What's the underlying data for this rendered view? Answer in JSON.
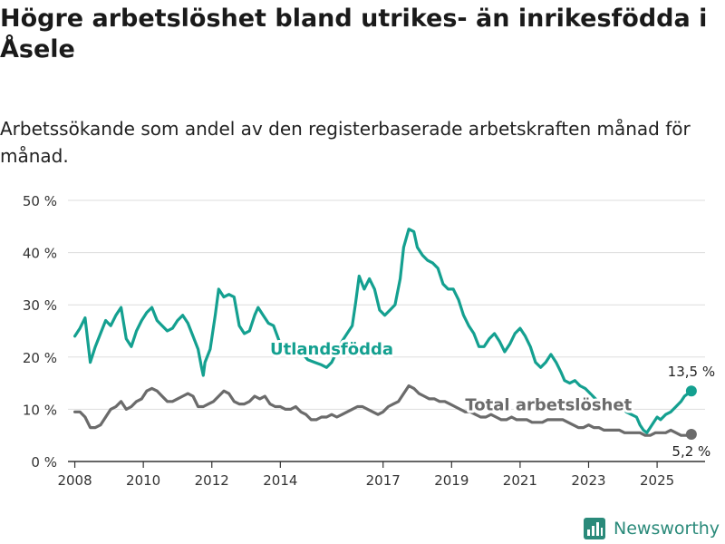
{
  "title": "Högre arbetslöshet bland utrikes- än inrikesfödda i Åsele",
  "subtitle": "Arbetssökande som andel av den registerbaserade arbetskraften månad för månad.",
  "brand": {
    "name": "Newsworthy",
    "icon": "newsworthy-logo-icon"
  },
  "colors": {
    "foreign_born": "#14a090",
    "total": "#6b6b6b",
    "grid": "#dddddd",
    "axis": "#333333"
  },
  "chart_data": {
    "type": "line",
    "title": "Högre arbetslöshet bland utrikes- än inrikesfödda i Åsele",
    "xlabel": "",
    "ylabel": "",
    "xlim": [
      2007.8,
      2026.4
    ],
    "ylim": [
      0,
      50
    ],
    "y_ticks": [
      0,
      10,
      20,
      30,
      40,
      50
    ],
    "y_tick_labels": [
      "0 %",
      "10 %",
      "20 %",
      "30 %",
      "40 %",
      "50 %"
    ],
    "x_ticks": [
      2008,
      2010,
      2012,
      2014,
      2017,
      2019,
      2021,
      2023,
      2025
    ],
    "x_tick_labels": [
      "2008",
      "2010",
      "2012",
      "2014",
      "2017",
      "2019",
      "2021",
      "2023",
      "2025"
    ],
    "grid": true,
    "series": [
      {
        "name": "Utlandsfödda",
        "end_label": "13,5 %",
        "points": [
          [
            2008.0,
            24
          ],
          [
            2008.15,
            25.5
          ],
          [
            2008.3,
            27.5
          ],
          [
            2008.45,
            19
          ],
          [
            2008.6,
            22
          ],
          [
            2008.75,
            24.5
          ],
          [
            2008.9,
            27
          ],
          [
            2009.05,
            26
          ],
          [
            2009.2,
            28
          ],
          [
            2009.35,
            29.5
          ],
          [
            2009.5,
            23.5
          ],
          [
            2009.65,
            22
          ],
          [
            2009.8,
            25
          ],
          [
            2009.95,
            27
          ],
          [
            2010.1,
            28.5
          ],
          [
            2010.25,
            29.5
          ],
          [
            2010.4,
            27
          ],
          [
            2010.55,
            26
          ],
          [
            2010.7,
            25
          ],
          [
            2010.85,
            25.5
          ],
          [
            2011.0,
            27
          ],
          [
            2011.15,
            28
          ],
          [
            2011.3,
            26.5
          ],
          [
            2011.45,
            24
          ],
          [
            2011.6,
            21.5
          ],
          [
            2011.7,
            18
          ],
          [
            2011.75,
            16.5
          ],
          [
            2011.8,
            19
          ],
          [
            2011.95,
            21.5
          ],
          [
            2012.1,
            28
          ],
          [
            2012.2,
            33
          ],
          [
            2012.35,
            31.5
          ],
          [
            2012.5,
            32
          ],
          [
            2012.65,
            31.5
          ],
          [
            2012.8,
            26
          ],
          [
            2012.95,
            24.5
          ],
          [
            2013.1,
            25
          ],
          [
            2013.25,
            28
          ],
          [
            2013.35,
            29.5
          ],
          [
            2013.5,
            28
          ],
          [
            2013.65,
            26.5
          ],
          [
            2013.8,
            26
          ],
          [
            2014.0,
            22.5
          ],
          [
            2014.2,
            22
          ],
          [
            2014.4,
            21.5
          ],
          [
            2014.6,
            21
          ],
          [
            2014.8,
            19.5
          ],
          [
            2015.0,
            19
          ],
          [
            2015.2,
            18.5
          ],
          [
            2015.35,
            18
          ],
          [
            2015.5,
            19
          ],
          [
            2015.65,
            21
          ],
          [
            2015.8,
            23
          ],
          [
            2015.95,
            24.5
          ],
          [
            2016.1,
            26
          ],
          [
            2016.2,
            30.5
          ],
          [
            2016.3,
            35.5
          ],
          [
            2016.45,
            33
          ],
          [
            2016.6,
            35
          ],
          [
            2016.75,
            33
          ],
          [
            2016.9,
            29
          ],
          [
            2017.05,
            28
          ],
          [
            2017.2,
            29
          ],
          [
            2017.35,
            30
          ],
          [
            2017.5,
            35
          ],
          [
            2017.6,
            41
          ],
          [
            2017.75,
            44.5
          ],
          [
            2017.9,
            44
          ],
          [
            2018.0,
            41
          ],
          [
            2018.15,
            39.5
          ],
          [
            2018.3,
            38.5
          ],
          [
            2018.45,
            38
          ],
          [
            2018.6,
            37
          ],
          [
            2018.75,
            34
          ],
          [
            2018.9,
            33
          ],
          [
            2019.05,
            33
          ],
          [
            2019.2,
            31
          ],
          [
            2019.35,
            28
          ],
          [
            2019.5,
            26
          ],
          [
            2019.65,
            24.5
          ],
          [
            2019.8,
            22
          ],
          [
            2019.95,
            22
          ],
          [
            2020.1,
            23.5
          ],
          [
            2020.25,
            24.5
          ],
          [
            2020.4,
            23
          ],
          [
            2020.55,
            21
          ],
          [
            2020.7,
            22.5
          ],
          [
            2020.85,
            24.5
          ],
          [
            2021.0,
            25.5
          ],
          [
            2021.15,
            24
          ],
          [
            2021.3,
            22
          ],
          [
            2021.45,
            19
          ],
          [
            2021.6,
            18
          ],
          [
            2021.75,
            19
          ],
          [
            2021.9,
            20.5
          ],
          [
            2022.05,
            19
          ],
          [
            2022.2,
            17
          ],
          [
            2022.3,
            15.5
          ],
          [
            2022.45,
            15
          ],
          [
            2022.6,
            15.5
          ],
          [
            2022.75,
            14.5
          ],
          [
            2022.9,
            14
          ],
          [
            2023.05,
            13
          ],
          [
            2023.2,
            12
          ],
          [
            2023.35,
            11
          ],
          [
            2023.5,
            10.5
          ],
          [
            2023.65,
            11
          ],
          [
            2023.8,
            11.5
          ],
          [
            2023.95,
            10.5
          ],
          [
            2024.1,
            9.5
          ],
          [
            2024.25,
            9
          ],
          [
            2024.4,
            8.5
          ],
          [
            2024.5,
            7
          ],
          [
            2024.6,
            6
          ],
          [
            2024.7,
            5.5
          ],
          [
            2024.8,
            6.5
          ],
          [
            2024.9,
            7.5
          ],
          [
            2025.0,
            8.5
          ],
          [
            2025.1,
            8
          ],
          [
            2025.25,
            9
          ],
          [
            2025.4,
            9.5
          ],
          [
            2025.55,
            10.5
          ],
          [
            2025.7,
            11.5
          ],
          [
            2025.8,
            12.5
          ],
          [
            2025.9,
            13
          ],
          [
            2026.0,
            13.5
          ]
        ]
      },
      {
        "name": "Total arbetslöshet",
        "end_label": "5,2 %",
        "points": [
          [
            2008.0,
            9.5
          ],
          [
            2008.15,
            9.5
          ],
          [
            2008.3,
            8.5
          ],
          [
            2008.45,
            6.5
          ],
          [
            2008.6,
            6.5
          ],
          [
            2008.75,
            7
          ],
          [
            2008.9,
            8.5
          ],
          [
            2009.05,
            10
          ],
          [
            2009.2,
            10.5
          ],
          [
            2009.35,
            11.5
          ],
          [
            2009.5,
            10
          ],
          [
            2009.65,
            10.5
          ],
          [
            2009.8,
            11.5
          ],
          [
            2009.95,
            12
          ],
          [
            2010.1,
            13.5
          ],
          [
            2010.25,
            14
          ],
          [
            2010.4,
            13.5
          ],
          [
            2010.55,
            12.5
          ],
          [
            2010.7,
            11.5
          ],
          [
            2010.85,
            11.5
          ],
          [
            2011.0,
            12
          ],
          [
            2011.15,
            12.5
          ],
          [
            2011.3,
            13
          ],
          [
            2011.45,
            12.5
          ],
          [
            2011.6,
            10.5
          ],
          [
            2011.75,
            10.5
          ],
          [
            2011.9,
            11
          ],
          [
            2012.05,
            11.5
          ],
          [
            2012.2,
            12.5
          ],
          [
            2012.35,
            13.5
          ],
          [
            2012.5,
            13
          ],
          [
            2012.65,
            11.5
          ],
          [
            2012.8,
            11
          ],
          [
            2012.95,
            11
          ],
          [
            2013.1,
            11.5
          ],
          [
            2013.25,
            12.5
          ],
          [
            2013.4,
            12
          ],
          [
            2013.55,
            12.5
          ],
          [
            2013.7,
            11
          ],
          [
            2013.85,
            10.5
          ],
          [
            2014.0,
            10.5
          ],
          [
            2014.15,
            10
          ],
          [
            2014.3,
            10
          ],
          [
            2014.45,
            10.5
          ],
          [
            2014.6,
            9.5
          ],
          [
            2014.75,
            9
          ],
          [
            2014.9,
            8
          ],
          [
            2015.05,
            8
          ],
          [
            2015.2,
            8.5
          ],
          [
            2015.35,
            8.5
          ],
          [
            2015.5,
            9
          ],
          [
            2015.65,
            8.5
          ],
          [
            2015.8,
            9
          ],
          [
            2015.95,
            9.5
          ],
          [
            2016.1,
            10
          ],
          [
            2016.25,
            10.5
          ],
          [
            2016.4,
            10.5
          ],
          [
            2016.55,
            10
          ],
          [
            2016.7,
            9.5
          ],
          [
            2016.85,
            9
          ],
          [
            2017.0,
            9.5
          ],
          [
            2017.15,
            10.5
          ],
          [
            2017.3,
            11
          ],
          [
            2017.45,
            11.5
          ],
          [
            2017.6,
            13
          ],
          [
            2017.75,
            14.5
          ],
          [
            2017.9,
            14
          ],
          [
            2018.05,
            13
          ],
          [
            2018.2,
            12.5
          ],
          [
            2018.35,
            12
          ],
          [
            2018.5,
            12
          ],
          [
            2018.65,
            11.5
          ],
          [
            2018.8,
            11.5
          ],
          [
            2018.95,
            11
          ],
          [
            2019.1,
            10.5
          ],
          [
            2019.25,
            10
          ],
          [
            2019.4,
            9.5
          ],
          [
            2019.55,
            9.5
          ],
          [
            2019.7,
            9
          ],
          [
            2019.85,
            8.5
          ],
          [
            2020.0,
            8.5
          ],
          [
            2020.15,
            9
          ],
          [
            2020.3,
            8.5
          ],
          [
            2020.45,
            8
          ],
          [
            2020.6,
            8
          ],
          [
            2020.75,
            8.5
          ],
          [
            2020.9,
            8
          ],
          [
            2021.05,
            8
          ],
          [
            2021.2,
            8
          ],
          [
            2021.35,
            7.5
          ],
          [
            2021.5,
            7.5
          ],
          [
            2021.65,
            7.5
          ],
          [
            2021.8,
            8
          ],
          [
            2021.95,
            8
          ],
          [
            2022.1,
            8
          ],
          [
            2022.25,
            8
          ],
          [
            2022.4,
            7.5
          ],
          [
            2022.55,
            7
          ],
          [
            2022.7,
            6.5
          ],
          [
            2022.85,
            6.5
          ],
          [
            2023.0,
            7
          ],
          [
            2023.15,
            6.5
          ],
          [
            2023.3,
            6.5
          ],
          [
            2023.45,
            6
          ],
          [
            2023.6,
            6
          ],
          [
            2023.75,
            6
          ],
          [
            2023.9,
            6
          ],
          [
            2024.05,
            5.5
          ],
          [
            2024.2,
            5.5
          ],
          [
            2024.35,
            5.5
          ],
          [
            2024.5,
            5.5
          ],
          [
            2024.65,
            5
          ],
          [
            2024.8,
            5
          ],
          [
            2024.95,
            5.5
          ],
          [
            2025.1,
            5.5
          ],
          [
            2025.25,
            5.5
          ],
          [
            2025.4,
            6
          ],
          [
            2025.55,
            5.5
          ],
          [
            2025.7,
            5
          ],
          [
            2025.85,
            5
          ],
          [
            2026.0,
            5.2
          ]
        ]
      }
    ],
    "annotations": [
      {
        "series": "Utlandsfödda",
        "text": "Utlandsfödda",
        "x": 2013.7,
        "y": 20.5
      },
      {
        "series": "Total arbetslöshet",
        "text": "Total arbetslöshet",
        "x": 2019.4,
        "y": 9.8
      }
    ]
  }
}
